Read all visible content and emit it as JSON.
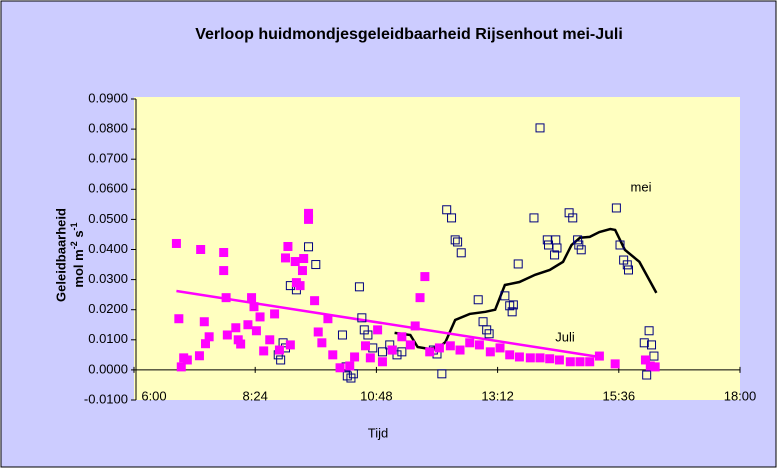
{
  "chart_data": {
    "type": "scatter",
    "title": "Verloop huidmondjesgeleidbaarheid Rijsenhout mei-Juli",
    "x_label": "Tijd",
    "y_label": {
      "line1": "Geleidbaarheid",
      "unit": [
        "mol m",
        "-2",
        " s",
        "-1"
      ]
    },
    "xlim": [
      0.25,
      0.75
    ],
    "xticks": [
      {
        "value": 0.25,
        "label": "6:00"
      },
      {
        "value": 0.35,
        "label": "8:24"
      },
      {
        "value": 0.45,
        "label": "10:48"
      },
      {
        "value": 0.55,
        "label": "13:12"
      },
      {
        "value": 0.65,
        "label": "15:36"
      },
      {
        "value": 0.75,
        "label": "18:00"
      }
    ],
    "ylim": [
      -0.01,
      0.09
    ],
    "yticks": [
      {
        "value": 0.09,
        "label": "0.0900"
      },
      {
        "value": 0.08,
        "label": "0.0800"
      },
      {
        "value": 0.07,
        "label": "0.0700"
      },
      {
        "value": 0.06,
        "label": "0.0600"
      },
      {
        "value": 0.05,
        "label": "0.0500"
      },
      {
        "value": 0.04,
        "label": "0.0400"
      },
      {
        "value": 0.03,
        "label": "0.0300"
      },
      {
        "value": 0.02,
        "label": "0.0200"
      },
      {
        "value": 0.01,
        "label": "0.0100"
      },
      {
        "value": 0,
        "label": "0.0000"
      },
      {
        "value": -0.01,
        "label": "-0.0100"
      }
    ],
    "series": [
      {
        "name": "mei",
        "color": "#000080",
        "marker": "open-square",
        "x": [
          0.369,
          0.371,
          0.373,
          0.375,
          0.379,
          0.384,
          0.394,
          0.4,
          0.422,
          0.425,
          0.426,
          0.429,
          0.431,
          0.436,
          0.438,
          0.44,
          0.443,
          0.447,
          0.455,
          0.461,
          0.463,
          0.467,
          0.471,
          0.497,
          0.5,
          0.504,
          0.508,
          0.512,
          0.515,
          0.517,
          0.52,
          0.534,
          0.538,
          0.541,
          0.543,
          0.556,
          0.56,
          0.562,
          0.563,
          0.567,
          0.58,
          0.585,
          0.591,
          0.592,
          0.597,
          0.598,
          0.599,
          0.609,
          0.612,
          0.616,
          0.617,
          0.619,
          0.648,
          0.651,
          0.654,
          0.657,
          0.658,
          0.671,
          0.673,
          0.675,
          0.677,
          0.679
        ],
        "values": [
          0.005,
          0.0033,
          0.009,
          0.0073,
          0.028,
          0.0266,
          0.0409,
          0.035,
          0.0116,
          0.001,
          -0.002,
          -0.0027,
          -0.0013,
          0.0276,
          0.0173,
          0.0133,
          0.0116,
          0.0073,
          0.006,
          0.0083,
          0.0066,
          0.005,
          0.006,
          0.0066,
          0.0053,
          -0.0013,
          0.0532,
          0.0505,
          0.0432,
          0.0425,
          0.0389,
          0.0233,
          0.016,
          0.0133,
          0.012,
          0.0246,
          0.0213,
          0.0193,
          0.0216,
          0.0352,
          0.0505,
          0.0804,
          0.0432,
          0.0415,
          0.0382,
          0.0432,
          0.0405,
          0.0522,
          0.0505,
          0.0432,
          0.0415,
          0.0399,
          0.0538,
          0.0415,
          0.0365,
          0.0349,
          0.0332,
          0.009,
          -0.0017,
          0.013,
          0.0083,
          0.0046
        ]
      },
      {
        "name": "Juli",
        "color": "#ff00ff",
        "marker": "filled-square",
        "x": [
          0.285,
          0.287,
          0.289,
          0.291,
          0.294,
          0.304,
          0.305,
          0.308,
          0.309,
          0.312,
          0.324,
          0.324,
          0.326,
          0.327,
          0.334,
          0.336,
          0.338,
          0.344,
          0.347,
          0.349,
          0.351,
          0.354,
          0.357,
          0.362,
          0.366,
          0.37,
          0.375,
          0.377,
          0.379,
          0.383,
          0.384,
          0.387,
          0.389,
          0.39,
          0.394,
          0.394,
          0.399,
          0.402,
          0.405,
          0.41,
          0.414,
          0.42,
          0.428,
          0.432,
          0.441,
          0.445,
          0.451,
          0.455,
          0.463,
          0.471,
          0.478,
          0.482,
          0.486,
          0.49,
          0.494,
          0.502,
          0.511,
          0.519,
          0.527,
          0.535,
          0.544,
          0.552,
          0.56,
          0.568,
          0.577,
          0.585,
          0.593,
          0.601,
          0.61,
          0.618,
          0.626,
          0.634,
          0.647,
          0.672,
          0.676,
          0.68
        ],
        "values": [
          0.042,
          0.017,
          0.001,
          0.004,
          0.0033,
          0.0047,
          0.04,
          0.016,
          0.0087,
          0.011,
          0.039,
          0.033,
          0.024,
          0.0116,
          0.014,
          0.01,
          0.0086,
          0.015,
          0.024,
          0.021,
          0.013,
          0.0176,
          0.0063,
          0.01,
          0.0186,
          0.0066,
          0.0372,
          0.041,
          0.0083,
          0.036,
          0.029,
          0.028,
          0.033,
          0.037,
          0.052,
          0.05,
          0.023,
          0.0126,
          0.009,
          0.017,
          0.005,
          0.0007,
          0.0013,
          0.0043,
          0.008,
          0.004,
          0.0133,
          0.0027,
          0.0066,
          0.011,
          0.0083,
          0.0146,
          0.024,
          0.031,
          0.006,
          0.0073,
          0.008,
          0.0066,
          0.009,
          0.0083,
          0.006,
          0.0073,
          0.005,
          0.0043,
          0.004,
          0.004,
          0.0037,
          0.0033,
          0.0027,
          0.0027,
          0.0027,
          0.0046,
          0.002,
          0.0033,
          0.0013,
          0.001
        ]
      }
    ],
    "lines": [
      {
        "color": "#000000",
        "x": [
          0.465,
          0.478,
          0.484,
          0.493,
          0.502,
          0.507,
          0.515,
          0.527,
          0.54,
          0.548,
          0.556,
          0.568,
          0.581,
          0.593,
          0.604,
          0.611,
          0.618,
          0.626,
          0.634,
          0.643,
          0.647,
          0.655,
          0.667,
          0.681
        ],
        "values": [
          0.0123,
          0.0116,
          0.0076,
          0.007,
          0.0076,
          0.0093,
          0.0166,
          0.0186,
          0.0193,
          0.02,
          0.0282,
          0.0292,
          0.0316,
          0.0332,
          0.0359,
          0.0415,
          0.0439,
          0.0442,
          0.0458,
          0.0468,
          0.0465,
          0.0399,
          0.0359,
          0.0256
        ]
      },
      {
        "color": "#ff00ff",
        "x": [
          0.285,
          0.634
        ],
        "values": [
          0.0262,
          0.0043
        ]
      }
    ]
  }
}
